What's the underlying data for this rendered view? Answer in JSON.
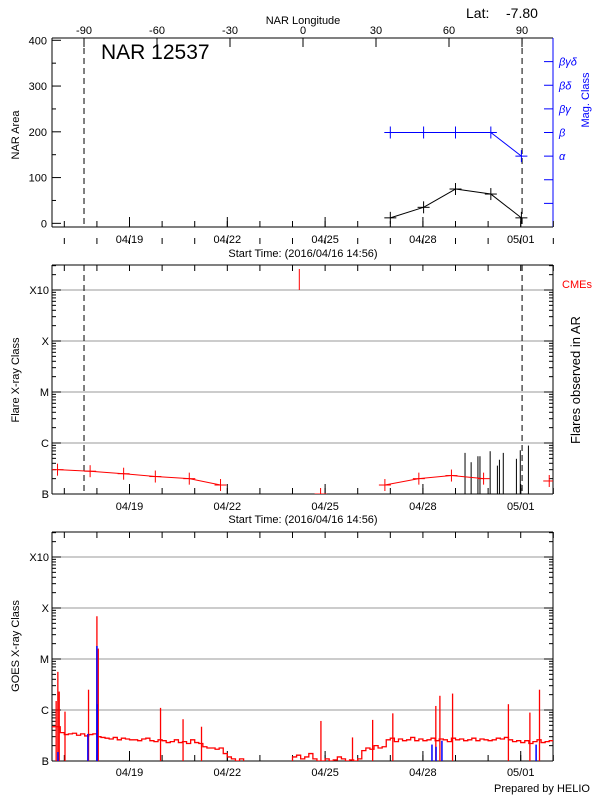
{
  "header": {
    "lat_label": "Lat:",
    "lat_value": "-7.80",
    "region_title": "NAR 12537",
    "prepared_by": "Prepared by HELIO"
  },
  "colors": {
    "area": "#000000",
    "mag_class": "#0000ff",
    "flare": "#ff0000",
    "goes_long": "#ff0000",
    "goes_short": "#0000ff",
    "grid": "#999999",
    "cme": "#ff0000",
    "ar_flares": "#000000"
  },
  "time_axis": {
    "start": "2016-04-16T14:56",
    "end": "2016-05-02T00:30",
    "label": "Start Time: (2016/04/16 14:56)",
    "tick_labels": [
      {
        "date": "2016-04-19",
        "label": "04/19"
      },
      {
        "date": "2016-04-22",
        "label": "04/22"
      },
      {
        "date": "2016-04-25",
        "label": "04/25"
      },
      {
        "date": "2016-04-28",
        "label": "04/28"
      },
      {
        "date": "2016-05-01",
        "label": "05/01"
      }
    ],
    "minor_ticks": "daily"
  },
  "disk_markers": [
    "2016-04-17T14:30",
    "2016-05-01T01:00"
  ],
  "chart_data": [
    {
      "type": "line",
      "title": "NAR 12537",
      "xlabel": "Start Time: (2016/04/16 14:56)",
      "ylabel": "NAR Area",
      "ylim": [
        0,
        400
      ],
      "yticks": [
        0,
        100,
        200,
        300,
        400
      ],
      "top_axis": {
        "label": "NAR Longitude",
        "ticks": [
          -90,
          -60,
          -30,
          0,
          30,
          60,
          90
        ],
        "tick_labels": [
          "-90",
          "-60",
          "-30",
          "0",
          "30",
          "60",
          "90"
        ]
      },
      "right_axis": {
        "label": "Mag. Class",
        "classes": [
          "",
          "",
          "α",
          "β",
          "βγ",
          "βδ",
          "βγδ"
        ]
      },
      "x": [
        "2016-04-27T00:00",
        "2016-04-28T00:30",
        "2016-04-29T00:00",
        "2016-04-30T02:00",
        "2016-05-01T00:30"
      ],
      "series": [
        {
          "name": "NAR Area",
          "values": [
            12,
            35,
            75,
            64,
            12
          ]
        },
        {
          "name": "Mag. Class",
          "values": [
            "β",
            "β",
            "β",
            "β",
            "α"
          ]
        }
      ]
    },
    {
      "type": "line",
      "xlabel": "Start Time: (2016/04/16 14:56)",
      "ylabel": "Flare X-ray Class",
      "right_label": "Flares observed in AR",
      "cme_label": "CMEs",
      "yscale": "log",
      "ylim": [
        1e-07,
        0.003
      ],
      "yticks": [
        {
          "value": 1e-07,
          "label": "B"
        },
        {
          "value": 1e-06,
          "label": "C"
        },
        {
          "value": 1e-05,
          "label": "M"
        },
        {
          "value": 0.0001,
          "label": "X"
        },
        {
          "value": 0.001,
          "label": "X10"
        }
      ],
      "grid": true,
      "x": [
        "2016-04-16T19:00",
        "2016-04-17T19:00",
        "2016-04-18T19:40",
        "2016-04-19T19:00",
        "2016-04-20T20:00",
        "2016-04-21T19:00",
        "2016-04-24T20:40",
        "2016-04-26T20:00",
        "2016-04-27T21:00",
        "2016-04-28T21:00",
        "2016-04-29T20:40",
        "2016-05-01T21:00"
      ],
      "values": [
        3e-07,
        2.8e-07,
        2.5e-07,
        2.2e-07,
        2e-07,
        1.5e-07,
        1e-07,
        1.5e-07,
        2e-07,
        2.3e-07,
        2e-07,
        1.8e-07
      ],
      "ar_flares": [
        {
          "time": "2016-04-29T07:00",
          "flux": 6.4e-07
        },
        {
          "time": "2016-04-29T11:30",
          "flux": 4.2e-07
        },
        {
          "time": "2016-04-29T16:30",
          "flux": 5.5e-07
        },
        {
          "time": "2016-04-29T18:00",
          "flux": 5.5e-07
        },
        {
          "time": "2016-04-30T01:30",
          "flux": 6.9e-07
        },
        {
          "time": "2016-04-30T06:50",
          "flux": 3.6e-07
        },
        {
          "time": "2016-04-30T08:20",
          "flux": 4.7e-07
        },
        {
          "time": "2016-04-30T11:10",
          "flux": 6.4e-07
        },
        {
          "time": "2016-04-30T20:50",
          "flux": 4.9e-07
        },
        {
          "time": "2016-04-30T23:40",
          "flux": 7.2e-07
        },
        {
          "time": "2016-05-01T05:40",
          "flux": 8.9e-07
        }
      ],
      "cmes": [
        "2016-04-24T05:00"
      ]
    },
    {
      "type": "line",
      "xlabel": "",
      "ylabel": "GOES X-ray Class",
      "yscale": "log",
      "ylim": [
        1e-07,
        0.003
      ],
      "yticks": [
        {
          "value": 1e-07,
          "label": "B"
        },
        {
          "value": 1e-06,
          "label": "C"
        },
        {
          "value": 1e-05,
          "label": "M"
        },
        {
          "value": 0.0001,
          "label": "X"
        },
        {
          "value": 0.001,
          "label": "X10"
        }
      ],
      "grid": true,
      "long_channel": {
        "start": "2016-04-16T15:00",
        "interval_hours": 3,
        "values": [
          4.7e-07,
          4.7e-07,
          3.6e-07,
          3.3e-07,
          3.4e-07,
          3.5e-07,
          3.2e-07,
          3.4e-07,
          3.1e-07,
          3.3e-07,
          3.4e-07,
          3e-07,
          2.9e-07,
          2.8e-07,
          2.7e-07,
          2.9e-07,
          2.6e-07,
          2.8e-07,
          2.7e-07,
          2.6e-07,
          2.6e-07,
          2.5e-07,
          2.7e-07,
          2.8e-07,
          2.5e-07,
          2.4e-07,
          2.6e-07,
          2.5e-07,
          2.3e-07,
          2.4e-07,
          2.6e-07,
          2.3e-07,
          2.4e-07,
          2.2e-07,
          2.6e-07,
          2.3e-07,
          2.2e-07,
          1.9e-07,
          1.8e-07,
          1.8e-07,
          1.7e-07,
          1.8e-07,
          1.4e-07,
          1.2e-07,
          1.1e-07,
          1e-07,
          1.1e-07,
          9.5e-08,
          9e-08,
          8e-08,
          8e-08,
          7e-08,
          7e-08,
          7e-08,
          7e-08,
          8e-08,
          9e-08,
          8e-08,
          9e-08,
          1.2e-07,
          1.3e-07,
          1.1e-07,
          1.2e-07,
          1.4e-07,
          1.1e-07,
          1e-07,
          1e-07,
          1.1e-07,
          1e-07,
          1.05e-07,
          1.2e-07,
          1.1e-07,
          1e-07,
          1.05e-07,
          1e-07,
          1.1e-07,
          1.6e-07,
          1.8e-07,
          1.7e-07,
          2e-07,
          1.8e-07,
          1.9e-07,
          2.6e-07,
          2.8e-07,
          2.4e-07,
          2.7e-07,
          2.5e-07,
          2.6e-07,
          2.9e-07,
          2.5e-07,
          2.7e-07,
          2.5e-07,
          2.6e-07,
          2.8e-07,
          2.5e-07,
          2.7e-07,
          2.6e-07,
          2.4e-07,
          2.8e-07,
          2.6e-07,
          2.7e-07,
          2.5e-07,
          2.6e-07,
          2.8e-07,
          2.5e-07,
          2.7e-07,
          2.6e-07,
          2.5e-07,
          2.6e-07,
          2.8e-07,
          2.7e-07,
          2.9e-07,
          2.6e-07,
          2.4e-07,
          2.5e-07,
          2.3e-07,
          2.5e-07,
          2.2e-07,
          2.4e-07,
          2.6e-07,
          2.3e-07,
          2.4e-07,
          2.5e-07
        ]
      },
      "long_channel_peaks": [
        {
          "time": "2016-04-16T18:00",
          "flux": 1.5e-06
        },
        {
          "time": "2016-04-16T19:15",
          "flux": 5.6e-06
        },
        {
          "time": "2016-04-16T20:15",
          "flux": 2.3e-06
        },
        {
          "time": "2016-04-17T00:30",
          "flux": 9.3e-07
        },
        {
          "time": "2016-04-17T17:50",
          "flux": 2.5e-06
        },
        {
          "time": "2016-04-18T00:00",
          "flux": 6.9e-05
        },
        {
          "time": "2016-04-18T01:00",
          "flux": 1.6e-05
        },
        {
          "time": "2016-04-19T22:50",
          "flux": 1.1e-06
        },
        {
          "time": "2016-04-20T15:25",
          "flux": 6.6e-07
        },
        {
          "time": "2016-04-21T05:00",
          "flux": 4.7e-07
        },
        {
          "time": "2016-04-24T20:55",
          "flux": 6.1e-07
        },
        {
          "time": "2016-04-25T20:10",
          "flux": 2.9e-07
        },
        {
          "time": "2016-04-26T11:00",
          "flux": 6.4e-07
        },
        {
          "time": "2016-04-27T01:50",
          "flux": 8.6e-07
        },
        {
          "time": "2016-04-28T09:30",
          "flux": 1.2e-06
        },
        {
          "time": "2016-04-28T12:30",
          "flux": 1.9e-06
        },
        {
          "time": "2016-04-28T21:50",
          "flux": 2.1e-06
        },
        {
          "time": "2016-04-30T14:56",
          "flux": 1.3e-06
        },
        {
          "time": "2016-05-01T06:45",
          "flux": 8.9e-07
        },
        {
          "time": "2016-05-01T13:50",
          "flux": 2.5e-06
        }
      ],
      "short_channel_peaks": [
        {
          "time": "2016-04-16T19:20",
          "flux": 1.5e-07
        },
        {
          "time": "2016-04-17T17:20",
          "flux": 3.4e-07
        },
        {
          "time": "2016-04-18T00:00",
          "flux": 1.8e-05
        },
        {
          "time": "2016-04-18T00:10",
          "flux": 1.3e-06
        },
        {
          "time": "2016-04-28T06:40",
          "flux": 2.1e-07
        },
        {
          "time": "2016-04-28T09:40",
          "flux": 1.9e-07
        },
        {
          "time": "2016-04-28T14:00",
          "flux": 2.5e-07
        },
        {
          "time": "2016-05-01T11:20",
          "flux": 2.1e-07
        }
      ]
    }
  ]
}
